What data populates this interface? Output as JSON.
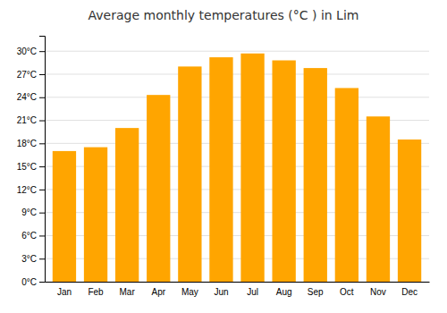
{
  "chart_data": {
    "type": "bar",
    "title": "Average monthly temperatures (°C ) in Lim",
    "categories": [
      "Jan",
      "Feb",
      "Mar",
      "Apr",
      "May",
      "Jun",
      "Jul",
      "Aug",
      "Sep",
      "Oct",
      "Nov",
      "Dec"
    ],
    "values": [
      17.0,
      17.5,
      20.0,
      24.3,
      28.0,
      29.2,
      29.7,
      28.8,
      27.8,
      25.2,
      21.5,
      18.5
    ],
    "color": "#FFA500",
    "ylim": [
      0,
      32
    ],
    "yticks": [
      {
        "value": 0,
        "label": "0°C"
      },
      {
        "value": 3,
        "label": "3°C"
      },
      {
        "value": 6,
        "label": "6°C"
      },
      {
        "value": 9,
        "label": "9°C"
      },
      {
        "value": 12,
        "label": "12°C"
      },
      {
        "value": 15,
        "label": "15°C"
      },
      {
        "value": 18,
        "label": "18°C"
      },
      {
        "value": 21,
        "label": "21°C"
      },
      {
        "value": 24,
        "label": "24°C"
      },
      {
        "value": 27,
        "label": "27°C"
      },
      {
        "value": 30,
        "label": "30°C"
      }
    ],
    "grid": true
  }
}
